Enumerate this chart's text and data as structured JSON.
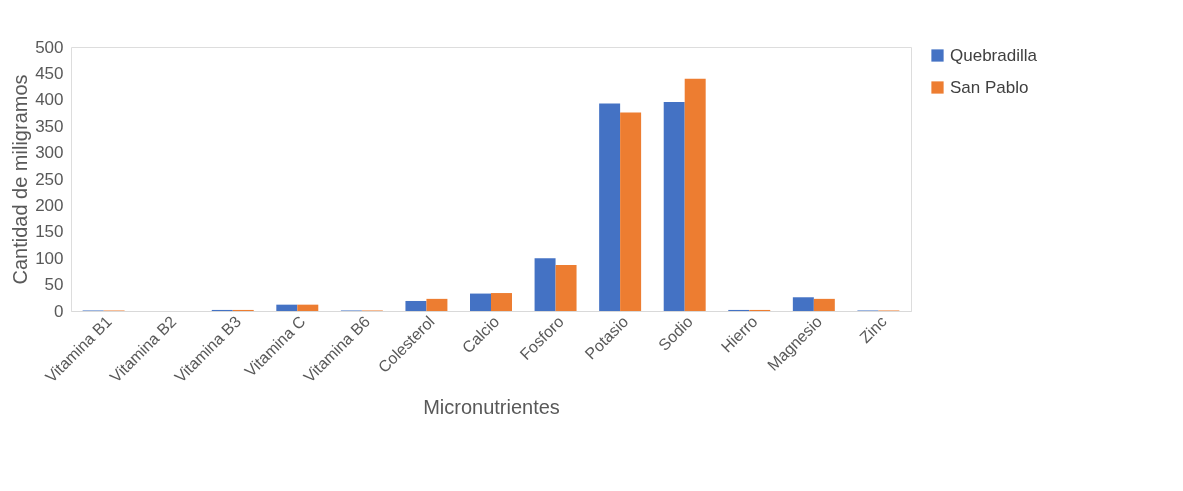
{
  "chart_data": {
    "type": "bar",
    "xlabel": "Micronutrientes",
    "ylabel": "Cantidad de miligramos",
    "categories": [
      "Vitamina B1",
      "Vitamina B2",
      "Vitamina B3",
      "Vitamina C",
      "Vitamina B6",
      "Colesterol",
      "Calcio",
      "Fosforo",
      "Potasio",
      "Sodio",
      "Hierro",
      "Magnesio",
      "Zinc"
    ],
    "series": [
      {
        "name": "Quebradilla",
        "color": "#4472c4",
        "values": [
          1,
          0,
          2,
          12,
          1,
          19,
          33,
          100,
          393,
          396,
          2,
          26,
          1
        ]
      },
      {
        "name": "San Pablo",
        "color": "#ed7d31",
        "values": [
          1,
          0,
          2,
          12,
          1,
          23,
          34,
          87,
          376,
          440,
          2,
          23,
          1
        ]
      }
    ],
    "ylim": [
      0,
      500
    ],
    "yticks": [
      0,
      50,
      100,
      150,
      200,
      250,
      300,
      350,
      400,
      450,
      500
    ],
    "grid": false,
    "legend": "right"
  }
}
